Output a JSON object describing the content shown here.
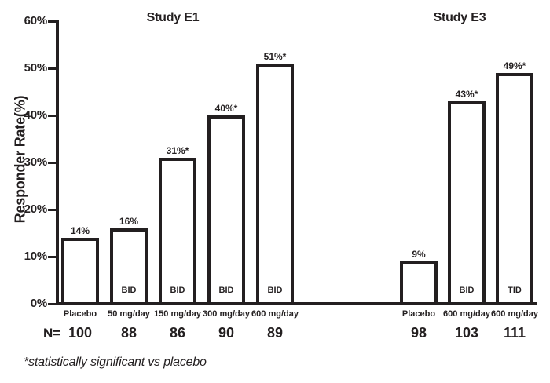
{
  "figure": {
    "background": "#ffffff",
    "ink_color": "#231f20",
    "bar_fill": "#ffffff",
    "bar_border": "#231f20"
  },
  "chart_data": {
    "type": "bar",
    "titles": [
      "Study E1",
      "Study E3"
    ],
    "ylabel": "Responder Rate(%)",
    "y_axis": {
      "min": 0,
      "max": 60,
      "step": 10,
      "suffix": "%",
      "tick_labels": [
        "0%",
        "10%",
        "20%",
        "30%",
        "40%",
        "50%",
        "60%"
      ]
    },
    "ylim": [
      0,
      60
    ],
    "grid": false,
    "legend_position": "none",
    "n_row_label": "N=",
    "footnote": "*statistically significant vs placebo",
    "groups": [
      {
        "name": "Study E1",
        "categories": [
          "Placebo",
          "50 mg/day",
          "150 mg/day",
          "300 mg/day",
          "600 mg/day"
        ],
        "bars": [
          {
            "category": "Placebo",
            "value": 14,
            "value_label": "14%",
            "schedule": "",
            "n": "100"
          },
          {
            "category": "50 mg/day",
            "value": 16,
            "value_label": "16%",
            "schedule": "BID",
            "n": "88"
          },
          {
            "category": "150 mg/day",
            "value": 31,
            "value_label": "31%*",
            "schedule": "BID",
            "n": "86"
          },
          {
            "category": "300 mg/day",
            "value": 40,
            "value_label": "40%*",
            "schedule": "BID",
            "n": "90"
          },
          {
            "category": "600 mg/day",
            "value": 51,
            "value_label": "51%*",
            "schedule": "BID",
            "n": "89"
          }
        ]
      },
      {
        "name": "Study E3",
        "categories": [
          "Placebo",
          "600 mg/day",
          "600 mg/day"
        ],
        "bars": [
          {
            "category": "Placebo",
            "value": 9,
            "value_label": "9%",
            "schedule": "",
            "n": "98"
          },
          {
            "category": "600 mg/day",
            "value": 43,
            "value_label": "43%*",
            "schedule": "BID",
            "n": "103"
          },
          {
            "category": "600 mg/day",
            "value": 49,
            "value_label": "49%*",
            "schedule": "TID",
            "n": "111"
          }
        ]
      }
    ]
  }
}
